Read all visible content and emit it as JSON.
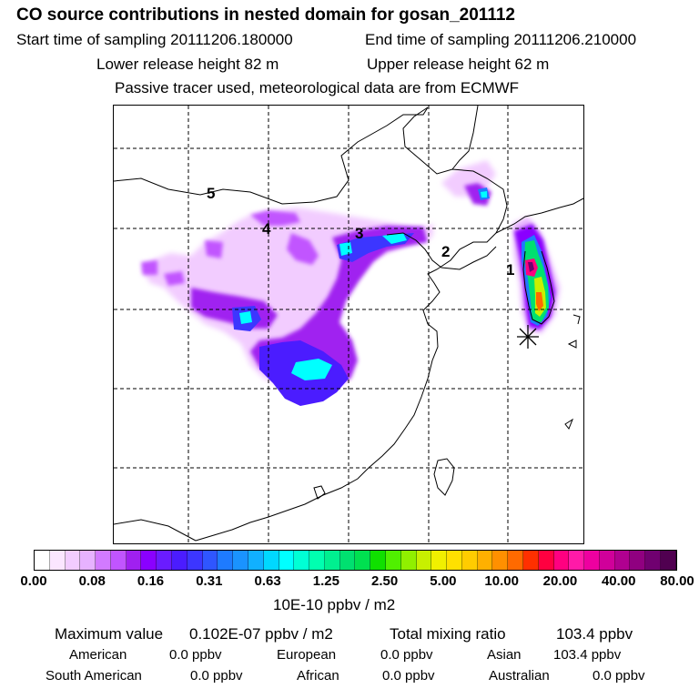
{
  "header": {
    "title": "CO  source contributions in nested domain for gosan_201112",
    "start_label": "Start time of sampling 20111206.180000",
    "end_label": "End time of sampling 20111206.210000",
    "lower_label": "Lower release height   82 m",
    "upper_label": "Upper release height   62 m",
    "note": "Passive tracer used, meteorological data are from ECMWF"
  },
  "map": {
    "region_labels": [
      "1",
      "2",
      "3",
      "4",
      "5"
    ],
    "receptor_icon": "asterisk-star-icon"
  },
  "colorbar": {
    "ticks": [
      "0.00",
      "0.08",
      "0.16",
      "0.31",
      "0.63",
      "1.25",
      "2.50",
      "5.00",
      "10.00",
      "20.00",
      "40.00",
      "80.00"
    ],
    "colors": [
      "#ffffff",
      "#fbe6ff",
      "#f2ccff",
      "#e7b2ff",
      "#d27aff",
      "#c155ff",
      "#a020f0",
      "#8a00ff",
      "#6a1cff",
      "#4b1cff",
      "#3c36ff",
      "#2f56ff",
      "#1e7bff",
      "#1a93ff",
      "#11b0ff",
      "#00d8ff",
      "#00ffff",
      "#00ffd5",
      "#00ffb0",
      "#00f090",
      "#00e070",
      "#00e050",
      "#10e000",
      "#50f000",
      "#90f000",
      "#c8f000",
      "#f0f000",
      "#ffe000",
      "#ffcc00",
      "#ffb000",
      "#ff9000",
      "#ff6a00",
      "#ff3000",
      "#ff0040",
      "#ff0080",
      "#ff1aa8",
      "#ee00a0",
      "#d0009a",
      "#b00090",
      "#900080",
      "#700070",
      "#500050"
    ],
    "units": "10E-10 ppbv / m2"
  },
  "summary": {
    "max_label": "Maximum value",
    "max_value": "0.102E-07 ppbv / m2",
    "total_label": "Total mixing ratio",
    "total_value": "103.4 ppbv",
    "regions": [
      {
        "name": "American",
        "value": "0.0 ppbv"
      },
      {
        "name": "European",
        "value": "0.0 ppbv"
      },
      {
        "name": "Asian",
        "value": "103.4 ppbv"
      },
      {
        "name": "South American",
        "value": "0.0 ppbv"
      },
      {
        "name": "African",
        "value": "0.0 ppbv"
      },
      {
        "name": "Australian",
        "value": "0.0 ppbv"
      }
    ]
  }
}
